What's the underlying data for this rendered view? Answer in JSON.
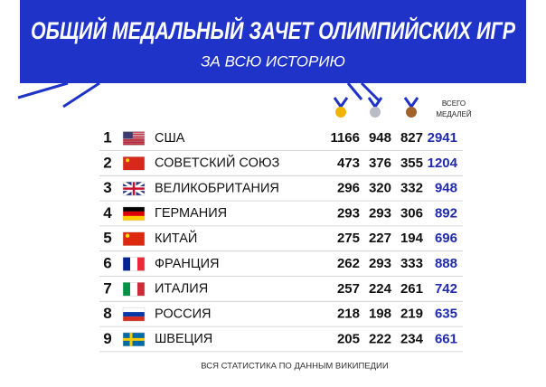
{
  "header": {
    "title": "ОБЩИЙ МЕДАЛЬНЫЙ ЗАЧЕТ ОЛИМПИЙСКИХ ИГР",
    "subtitle": "ЗА ВСЮ ИСТОРИЮ"
  },
  "table": {
    "columns": {
      "total_line1": "ВСЕГО",
      "total_line2": "МЕДАЛЕЙ"
    },
    "rows": [
      [
        1,
        "США",
        1166,
        948,
        827,
        2941
      ],
      [
        2,
        "СОВЕТСКИЙ СОЮЗ",
        473,
        376,
        355,
        1204
      ],
      [
        3,
        "ВЕЛИКОБРИТАНИЯ",
        296,
        320,
        332,
        948
      ],
      [
        4,
        "ГЕРМАНИЯ",
        293,
        293,
        306,
        892
      ],
      [
        5,
        "КИТАЙ",
        275,
        227,
        194,
        696
      ],
      [
        6,
        "ФРАНЦИЯ",
        262,
        293,
        333,
        888
      ],
      [
        7,
        "ИТАЛИЯ",
        257,
        224,
        261,
        742
      ],
      [
        8,
        "РОССИЯ",
        218,
        198,
        219,
        635
      ],
      [
        9,
        "ШВЕЦИЯ",
        205,
        222,
        234,
        661
      ]
    ]
  },
  "footer": "ВСЯ СТАТИСТИКА ПО ДАННЫМ ВИКИПЕДИИ"
}
